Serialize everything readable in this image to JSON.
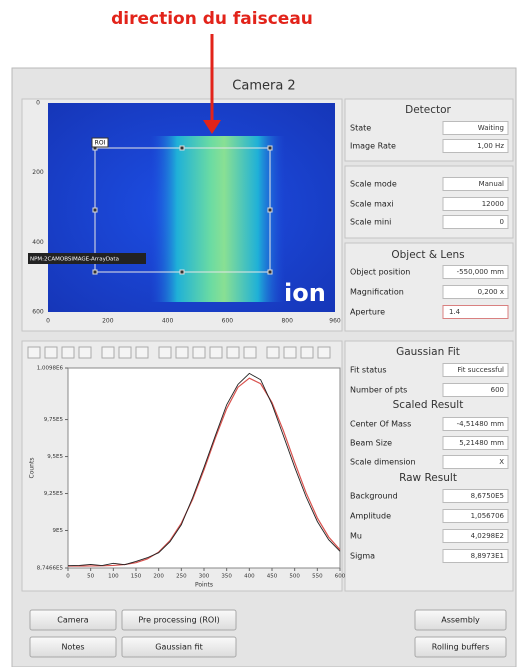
{
  "annotation": "direction du faisceau",
  "window": {
    "title": "Camera 2"
  },
  "image": {
    "x_ticks": [
      0,
      200,
      400,
      600,
      800,
      960
    ],
    "y_ticks": [
      0,
      200,
      400,
      600
    ],
    "roi_label": "ROI",
    "pv_label": "NPM:2CAMOBSIMAGE-ArrayData",
    "overlay": "ion"
  },
  "detector": {
    "title": "Detector",
    "fields": [
      {
        "label": "State",
        "value": "Waiting"
      },
      {
        "label": "Image Rate",
        "value": "1,00 Hz"
      }
    ]
  },
  "scale": {
    "fields": [
      {
        "label": "Scale mode",
        "value": "Manual"
      },
      {
        "label": "Scale maxi",
        "value": "12000"
      },
      {
        "label": "Scale mini",
        "value": "0"
      }
    ]
  },
  "object_lens": {
    "title": "Object & Lens",
    "fields": [
      {
        "label": "Object position",
        "value": "-550,000 mm"
      },
      {
        "label": "Magnification",
        "value": "0,200 x"
      },
      {
        "label": "Aperture",
        "value": "1.4"
      }
    ]
  },
  "gaussian_fit": {
    "title": "Gaussian Fit",
    "fields": [
      {
        "label": "Fit status",
        "value": "Fit successful"
      },
      {
        "label": "Number of pts",
        "value": "600"
      }
    ]
  },
  "scaled_result": {
    "title": "Scaled Result",
    "fields": [
      {
        "label": "Center Of Mass",
        "value": "-4,51480 mm"
      },
      {
        "label": "Beam Size",
        "value": "5,21480 mm"
      },
      {
        "label": "Scale dimension",
        "value": "X"
      }
    ]
  },
  "raw_result": {
    "title": "Raw Result",
    "fields": [
      {
        "label": "Background",
        "value": "8,6750E5"
      },
      {
        "label": "Amplitude",
        "value": "1,056706"
      },
      {
        "label": "Mu",
        "value": "4,0298E2"
      },
      {
        "label": "Sigma",
        "value": "8,8973E1"
      }
    ]
  },
  "plot": {
    "xlabel": "Points",
    "ylabel": "Counts",
    "xlim": [
      0,
      600
    ],
    "ylim": [
      874660,
      1009850
    ],
    "xticks": [
      0,
      50,
      100,
      150,
      200,
      250,
      300,
      350,
      400,
      450,
      500,
      550,
      600
    ],
    "yticks": [
      {
        "value": 874660,
        "label": "8,7466E5"
      },
      {
        "value": 900000,
        "label": "9E5"
      },
      {
        "value": 925000,
        "label": "9,25E5"
      },
      {
        "value": 950000,
        "label": "9,5E5"
      },
      {
        "value": 975000,
        "label": "9,75E5"
      },
      {
        "value": 1009850,
        "label": "1,0098E6"
      }
    ],
    "x": [
      0,
      25,
      50,
      75,
      100,
      125,
      150,
      175,
      200,
      225,
      250,
      275,
      300,
      325,
      350,
      375,
      400,
      425,
      450,
      475,
      500,
      525,
      550,
      575,
      600
    ],
    "measured": [
      876200,
      876400,
      877100,
      876300,
      877800,
      876900,
      879100,
      881600,
      885000,
      892400,
      903900,
      922300,
      942700,
      964100,
      985000,
      998800,
      1006200,
      1001900,
      985300,
      964200,
      942800,
      922900,
      906100,
      893800,
      885900
    ],
    "fit": [
      876000,
      876015,
      876049,
      876143,
      876386,
      876965,
      878235,
      880775,
      885423,
      893184,
      904981,
      921149,
      941010,
      962500,
      982363,
      996866,
      1002990,
      999190,
      986490,
      967570,
      946100,
      925650,
      908510,
      895620,
      886960
    ],
    "measured_color": "#222222",
    "fit_color": "#d9534f"
  },
  "buttons": [
    "Camera",
    "Pre processing (ROI)",
    "Assembly",
    "Notes",
    "Gaussian fit",
    "Rolling buffers"
  ]
}
